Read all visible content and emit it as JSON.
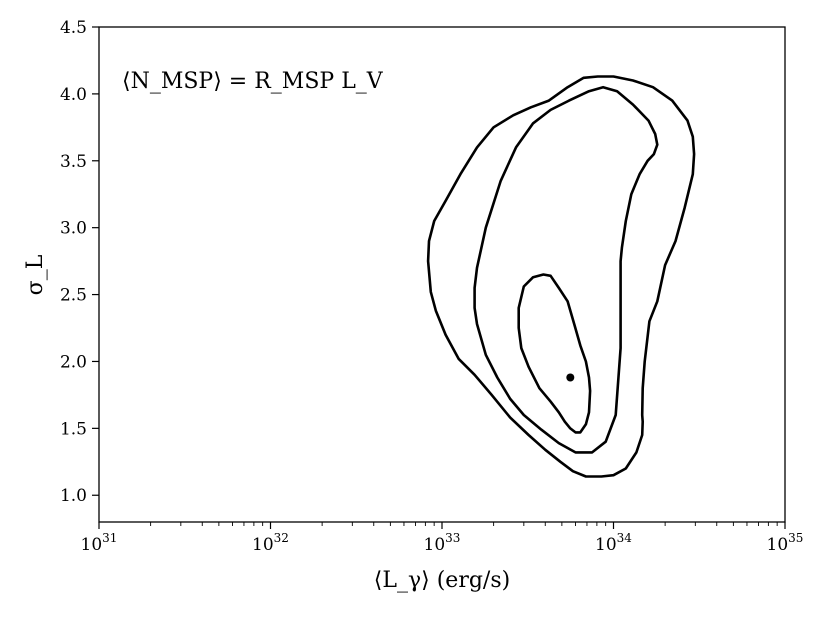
{
  "chart_data": {
    "type": "line",
    "xscale": "log",
    "xlim": [
      1e+31,
      1e+35
    ],
    "ylim": [
      0.8,
      4.5
    ],
    "xlabel": "⟨L_γ⟩ (erg/s)",
    "ylabel": "σ_L",
    "annotation": "⟨N_MSP⟩ = R_MSP L_V",
    "x_ticks": [
      {
        "value": 1e+31,
        "base": "10",
        "exp": "31"
      },
      {
        "value": 1e+32,
        "base": "10",
        "exp": "32"
      },
      {
        "value": 1e+33,
        "base": "10",
        "exp": "33"
      },
      {
        "value": 1e+34,
        "base": "10",
        "exp": "34"
      },
      {
        "value": 1e+35,
        "base": "10",
        "exp": "35"
      }
    ],
    "y_ticks": [
      "1.0",
      "1.5",
      "2.0",
      "2.5",
      "3.0",
      "3.5",
      "4.0",
      "4.5"
    ],
    "best_fit_point": {
      "x": 5.6e+33,
      "y": 1.88
    },
    "series": [
      {
        "x": [
          3e+33,
          3.4e+33,
          3.9e+33,
          4.3e+33,
          4.8e+33,
          5.4e+33,
          5.9e+33,
          6.4e+33,
          6.9e+33,
          7.2e+33,
          7.3e+33,
          7.2e+33,
          6.9e+33,
          6.4e+33,
          6e+33,
          5.6e+33,
          5.2e+33,
          4.8e+33,
          4.3e+33,
          3.7e+33,
          3.2e+33,
          2.9e+33,
          2.8e+33,
          2.8e+33,
          3e+33
        ],
        "y": [
          2.56,
          2.63,
          2.65,
          2.64,
          2.55,
          2.45,
          2.28,
          2.12,
          2.0,
          1.88,
          1.78,
          1.62,
          1.53,
          1.47,
          1.47,
          1.5,
          1.55,
          1.62,
          1.7,
          1.8,
          1.96,
          2.1,
          2.25,
          2.4,
          2.56
        ]
      },
      {
        "x": [
          1.6e+33,
          1.8e+33,
          2.2e+33,
          2.7e+33,
          3.4e+33,
          4.3e+33,
          5.5e+33,
          7.2e+33,
          8.7e+33,
          1.05e+34,
          1.3e+34,
          1.6e+34,
          1.75e+34,
          1.8e+34,
          1.72e+34,
          1.58e+34,
          1.42e+34,
          1.27e+34,
          1.18e+34,
          1.12e+34,
          1.1e+34,
          1.1e+34,
          1.1e+34,
          1.03e+34,
          9e+33,
          7.5e+33,
          6e+33,
          4.8e+33,
          3.8e+33,
          3e+33,
          2.5e+33,
          2.1e+33,
          1.8e+33,
          1.6e+33,
          1.55e+33,
          1.55e+33,
          1.6e+33
        ],
        "y": [
          2.7,
          3.0,
          3.35,
          3.6,
          3.78,
          3.88,
          3.95,
          4.02,
          4.05,
          4.02,
          3.92,
          3.8,
          3.7,
          3.62,
          3.55,
          3.5,
          3.4,
          3.25,
          3.05,
          2.85,
          2.75,
          2.55,
          2.1,
          1.6,
          1.4,
          1.32,
          1.32,
          1.39,
          1.49,
          1.6,
          1.72,
          1.88,
          2.05,
          2.28,
          2.4,
          2.55,
          2.7
        ]
      },
      {
        "x": [
          8.3e+32,
          8.4e+32,
          9e+32,
          1.05e+33,
          1.28e+33,
          1.6e+33,
          2e+33,
          2.6e+33,
          3.3e+33,
          4.2e+33,
          5.4e+33,
          6.7e+33,
          8.1e+33,
          1e+34,
          1.3e+34,
          1.7e+34,
          2.2e+34,
          2.7e+34,
          2.9e+34,
          2.95e+34,
          2.9e+34,
          2.6e+34,
          2.3e+34,
          2e+34,
          1.8e+34,
          1.62e+34,
          1.52e+34,
          1.48e+34,
          1.47e+34,
          1.48e+34,
          1.47e+34,
          1.36e+34,
          1.18e+34,
          1e+34,
          8.5e+33,
          6.9e+33,
          5.8e+33,
          4.9e+33,
          4e+33,
          3.2e+33,
          2.5e+33,
          1.95e+33,
          1.55e+33,
          1.25e+33,
          1.05e+33,
          9.2e+32,
          8.6e+32,
          8.3e+32
        ],
        "y": [
          2.75,
          2.9,
          3.05,
          3.2,
          3.4,
          3.6,
          3.75,
          3.84,
          3.9,
          3.95,
          4.05,
          4.12,
          4.13,
          4.13,
          4.1,
          4.05,
          3.95,
          3.8,
          3.68,
          3.55,
          3.4,
          3.15,
          2.9,
          2.72,
          2.45,
          2.3,
          2.0,
          1.8,
          1.6,
          1.55,
          1.45,
          1.32,
          1.2,
          1.15,
          1.14,
          1.14,
          1.18,
          1.25,
          1.34,
          1.45,
          1.58,
          1.75,
          1.9,
          2.02,
          2.2,
          2.38,
          2.52,
          2.75
        ]
      }
    ]
  }
}
